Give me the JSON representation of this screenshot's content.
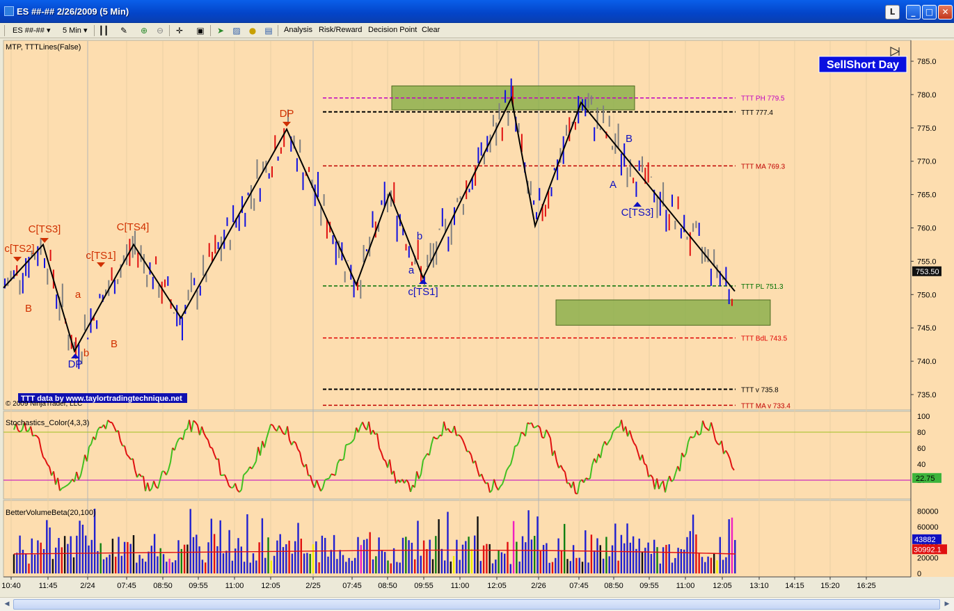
{
  "window": {
    "title": "ES ##-##  2/26/2009 (5 Min)",
    "l_button": "L",
    "minimize": "_",
    "maximize": "□",
    "close": "✕"
  },
  "toolbar": {
    "instrument": "ES ##-##",
    "interval": "5 Min",
    "menu": [
      "Analysis",
      "Risk/Reward",
      "Decision Point",
      "Clear"
    ]
  },
  "price_panel": {
    "indicator_label": "MTP, TTTLines(False)",
    "badge": "SellShort Day",
    "copyright": "© 2009 NinjaTrader, LLC",
    "ttt_credit": "TTT data by www.taylortradingtechnique.net",
    "last_price": "753.50",
    "y_ticks": [
      "785.0",
      "780.0",
      "775.0",
      "770.0",
      "765.0",
      "760.0",
      "755.0",
      "750.0",
      "745.0",
      "740.0",
      "735.0"
    ],
    "levels": [
      {
        "label": "TTT PH 779.5",
        "value": 779.5,
        "color": "#C000C0"
      },
      {
        "label": "TTT  777.4",
        "value": 777.4,
        "color": "#000000"
      },
      {
        "label": "TTT MA 769.3",
        "value": 769.3,
        "color": "#C00000"
      },
      {
        "label": "TTT PL 751.3",
        "value": 751.3,
        "color": "#007000"
      },
      {
        "label": "TTT BdL 743.5",
        "value": 743.5,
        "color": "#E00000"
      },
      {
        "label": "TTT v 735.8",
        "value": 735.8,
        "color": "#000000"
      },
      {
        "label": "TTT MA v 733.4",
        "value": 733.4,
        "color": "#C00000"
      }
    ],
    "annotations": [
      {
        "text": "c[TS2]",
        "color": "#D03000"
      },
      {
        "text": "C[TS3]",
        "color": "#D03000"
      },
      {
        "text": "c[TS1]",
        "color": "#D03000"
      },
      {
        "text": "C[TS4]",
        "color": "#D03000"
      },
      {
        "text": "DP",
        "color": "#D03000"
      },
      {
        "text": "B",
        "color": "#D03000"
      },
      {
        "text": "a",
        "color": "#D03000"
      },
      {
        "text": "b",
        "color": "#D03000"
      },
      {
        "text": "B",
        "color": "#D03000"
      },
      {
        "text": "DP",
        "color": "#1010C0"
      },
      {
        "text": "a",
        "color": "#1010C0"
      },
      {
        "text": "b",
        "color": "#1010C0"
      },
      {
        "text": "c[TS1]",
        "color": "#1010C0"
      },
      {
        "text": "B",
        "color": "#1010C0"
      },
      {
        "text": "A",
        "color": "#1010C0"
      },
      {
        "text": "C[TS3]",
        "color": "#1010C0"
      }
    ]
  },
  "stoch_panel": {
    "label": "Stochastics_Color(4,3,3)",
    "y_ticks": [
      "100",
      "80",
      "60",
      "40",
      "20"
    ],
    "last_value": "22.75"
  },
  "volume_panel": {
    "label": "BetterVolumeBeta(20,100)",
    "y_ticks": [
      "80000",
      "60000",
      "40000",
      "20000",
      "0"
    ],
    "last_volume": "43882",
    "avg_volume": "30992.1"
  },
  "x_axis": [
    "10:40",
    "11:45",
    "2/24",
    "07:45",
    "08:50",
    "09:55",
    "11:00",
    "12:05",
    "2/25",
    "07:45",
    "08:50",
    "09:55",
    "11:00",
    "12:05",
    "2/26",
    "07:45",
    "08:50",
    "09:55",
    "11:00",
    "12:05",
    "13:10",
    "14:15",
    "15:20",
    "16:25"
  ],
  "chart_data": {
    "type": "line",
    "title": "ES ##-##  2/26/2009 (5 Min)",
    "zigzag": [
      {
        "x": "10:40",
        "y": 751
      },
      {
        "x": "11:45",
        "y": 757.5
      },
      {
        "x": "2/24",
        "y": 741.5
      },
      {
        "x": "07:45",
        "y": 757.5
      },
      {
        "x": "09:55",
        "y": 746.5
      },
      {
        "x": "12:05",
        "y": 774.8
      },
      {
        "x": "07:45",
        "y": 751.5
      },
      {
        "x": "08:50",
        "y": 765.2
      },
      {
        "x": "09:55",
        "y": 752.5
      },
      {
        "x": "12:05",
        "y": 779.5
      },
      {
        "x": "2/26",
        "y": 760.3
      },
      {
        "x": "07:45",
        "y": 778.8
      },
      {
        "x": "12:05",
        "y": 750.5
      }
    ],
    "levels": [
      779.5,
      777.4,
      769.3,
      751.3,
      743.5,
      735.8,
      733.4
    ],
    "ylim": [
      733,
      787
    ],
    "last": 753.5
  }
}
